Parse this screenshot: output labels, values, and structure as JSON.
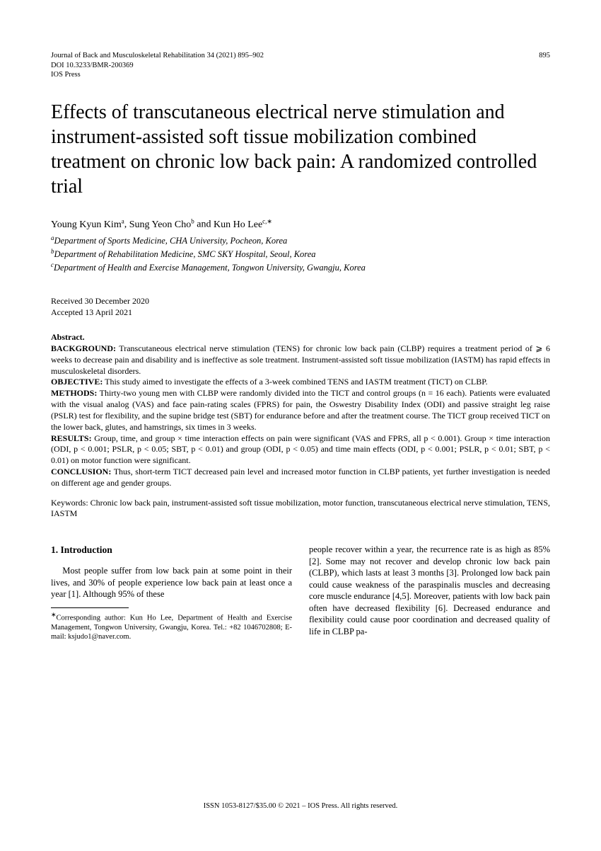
{
  "header": {
    "journal_line": "Journal of Back and Musculoskeletal Rehabilitation 34 (2021) 895–902",
    "doi_line": "DOI 10.3233/BMR-200369",
    "press_line": "IOS Press",
    "page_number": "895"
  },
  "title": "Effects of transcutaneous electrical nerve stimulation and instrument-assisted soft tissue mobilization combined treatment on chronic low back pain: A randomized controlled trial",
  "authors": [
    {
      "name": "Young Kyun Kim",
      "sup": "a"
    },
    {
      "name": "Sung Yeon Cho",
      "sup": "b"
    },
    {
      "name": "Kun Ho Lee",
      "sup": "c,∗"
    }
  ],
  "affiliations": [
    {
      "sup": "a",
      "text": "Department of Sports Medicine, CHA University, Pocheon, Korea"
    },
    {
      "sup": "b",
      "text": "Department of Rehabilitation Medicine, SMC SKY Hospital, Seoul, Korea"
    },
    {
      "sup": "c",
      "text": "Department of Health and Exercise Management, Tongwon University, Gwangju, Korea"
    }
  ],
  "dates": {
    "received": "Received 30 December 2020",
    "accepted": "Accepted 13 April 2021"
  },
  "abstract": {
    "heading": "Abstract.",
    "background_label": "BACKGROUND:",
    "background_text": " Transcutaneous electrical nerve stimulation (TENS) for chronic low back pain (CLBP) requires a treatment period of ⩾ 6 weeks to decrease pain and disability and is ineffective as sole treatment. Instrument-assisted soft tissue mobilization (IASTM) has rapid effects in musculoskeletal disorders.",
    "objective_label": "OBJECTIVE:",
    "objective_text": " This study aimed to investigate the effects of a 3-week combined TENS and IASTM treatment (TICT) on CLBP.",
    "methods_label": "METHODS:",
    "methods_text": " Thirty-two young men with CLBP were randomly divided into the TICT and control groups (n = 16 each). Patients were evaluated with the visual analog (VAS) and face pain-rating scales (FPRS) for pain, the Oswestry Disability Index (ODI) and passive straight leg raise (PSLR) test for flexibility, and the supine bridge test (SBT) for endurance before and after the treatment course. The TICT group received TICT on the lower back, glutes, and hamstrings, six times in 3 weeks.",
    "results_label": "RESULTS:",
    "results_text": " Group, time, and group × time interaction effects on pain were significant (VAS and FPRS, all p < 0.001). Group × time interaction (ODI, p < 0.001; PSLR, p < 0.05; SBT, p < 0.01) and group (ODI, p < 0.05) and time main effects (ODI, p < 0.001; PSLR, p < 0.01; SBT, p < 0.01) on motor function were significant.",
    "conclusion_label": "CONCLUSION:",
    "conclusion_text": " Thus, short-term TICT decreased pain level and increased motor function in CLBP patients, yet further investigation is needed on different age and gender groups."
  },
  "keywords": "Keywords: Chronic low back pain, instrument-assisted soft tissue mobilization, motor function, transcutaneous electrical nerve stimulation, TENS, IASTM",
  "body": {
    "section_heading": "1.  Introduction",
    "col1_para": "Most people suffer from low back pain at some point in their lives, and 30% of people experience low back pain at least once a year [1]. Although 95% of these",
    "col2_para": "people recover within a year, the recurrence rate is as high as 85% [2]. Some may not recover and develop chronic low back pain (CLBP), which lasts at least 3 months [3]. Prolonged low back pain could cause weakness of the paraspinalis muscles and decreasing core muscle endurance [4,5]. Moreover, patients with low back pain often have decreased flexibility [6]. Decreased endurance and flexibility could cause poor coordination and decreased quality of life in CLBP pa-"
  },
  "footnote": {
    "star": "∗",
    "text": "Corresponding author: Kun Ho Lee, Department of Health and Exercise Management, Tongwon University, Gwangju, Korea. Tel.: +82 1046702808; E-mail: ksjudo1@naver.com."
  },
  "footer": "ISSN 1053-8127/$35.00 © 2021 – IOS Press. All rights reserved."
}
